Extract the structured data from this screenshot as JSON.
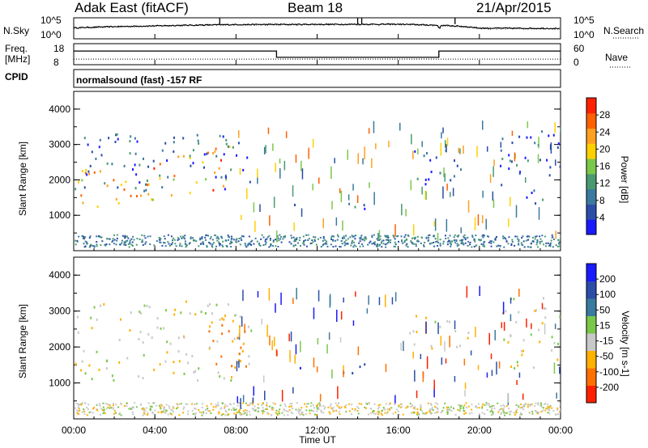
{
  "header": {
    "radar": "Adak East (fitACF)",
    "beam": "Beam 18",
    "date": "21/Apr/2015"
  },
  "chart_data": [
    {
      "type": "line",
      "panel": "noise",
      "left_label": "N.Sky",
      "right_label": "N.Search",
      "left_ticks": [
        "10^5",
        "10^0"
      ],
      "right_ticks": [
        "10^5",
        "10^0"
      ],
      "yscale": "log",
      "ylim": [
        1,
        100000
      ],
      "x": [
        "00:00",
        "04:00",
        "08:00",
        "12:00",
        "16:00",
        "20:00",
        "24:00"
      ],
      "series": [
        {
          "name": "N.Sky",
          "values": [
            400,
            1200,
            2500,
            2800,
            3000,
            350,
            300
          ]
        },
        {
          "name": "N.Search",
          "values": [
            300,
            1000,
            2000,
            2300,
            2500,
            250,
            220
          ]
        }
      ]
    },
    {
      "type": "line",
      "panel": "frequency",
      "left_label": "Freq. [MHz]",
      "right_label": "Nave",
      "bottom_label": "CPID",
      "left_ticks": [
        18,
        8
      ],
      "right_ticks": [
        60,
        0
      ],
      "ylim": [
        8,
        18
      ],
      "x": [
        "00:00",
        "10:00",
        "10:00",
        "18:00",
        "18:00",
        "24:00"
      ],
      "series": [
        {
          "name": "Freq.",
          "values": [
            14.5,
            14.5,
            11.5,
            11.5,
            14.5,
            14.5
          ]
        },
        {
          "name": "Nave",
          "values": [
            16,
            16,
            16,
            16,
            16,
            16
          ]
        }
      ],
      "annotation": "normalsound (fast) -157 RF"
    },
    {
      "type": "heatmap",
      "panel": "power",
      "ylabel": "Slant Range [km]",
      "yticks": [
        1000,
        2000,
        3000,
        4000
      ],
      "ylim": [
        0,
        4500
      ],
      "colorbar_label": "Power [dB]",
      "colorbar_ticks": [
        4,
        8,
        12,
        16,
        20,
        24,
        28
      ],
      "colorbar_range": [
        0,
        32
      ],
      "colors": [
        "#1a1aff",
        "#2a4ea8",
        "#3a7a9e",
        "#4a9a70",
        "#7ac84a",
        "#ffd000",
        "#ffa020",
        "#ff6000",
        "#ff2000"
      ],
      "scatter_regions": [
        {
          "t": [
            0.2,
            7.7
          ],
          "r": [
            1100,
            2300
          ],
          "value": 22
        },
        {
          "t": [
            0.0,
            8.8
          ],
          "r": [
            1700,
            3300
          ],
          "value": 7
        },
        {
          "t": [
            1.0,
            2.2
          ],
          "r": [
            3300,
            3600
          ],
          "value": 12
        },
        {
          "t": [
            10.0,
            11.2
          ],
          "r": [
            1250,
            1450
          ],
          "value": 6
        },
        {
          "t": [
            13.0,
            14.5
          ],
          "r": [
            1150,
            1600
          ],
          "value": 6
        },
        {
          "t": [
            16.5,
            19.5
          ],
          "r": [
            1900,
            2900
          ],
          "value": 5
        },
        {
          "t": [
            21.0,
            24.0
          ],
          "r": [
            1300,
            3400
          ],
          "value": 5
        }
      ]
    },
    {
      "type": "heatmap",
      "panel": "velocity",
      "xlabel": "Time UT",
      "ylabel": "Slant Range [km]",
      "xticks": [
        "00:00",
        "04:00",
        "08:00",
        "12:00",
        "16:00",
        "20:00",
        "00:00"
      ],
      "yticks": [
        1000,
        2000,
        3000,
        4000
      ],
      "ylim": [
        0,
        4500
      ],
      "colorbar_label": "Velocity [m s-1]",
      "colorbar_ticks": [
        200,
        100,
        50,
        15,
        -15,
        -50,
        -100,
        -200
      ],
      "colors": [
        "#1a1aff",
        "#2a4ea8",
        "#3a7a9e",
        "#7ac84a",
        "#c8c8c8",
        "#ffb000",
        "#ff7000",
        "#ff2000"
      ],
      "scatter_regions": [
        {
          "t": [
            0.0,
            8.8
          ],
          "r": [
            1100,
            3300
          ],
          "value": 0
        },
        {
          "t": [
            6.5,
            8.5
          ],
          "r": [
            1400,
            3000
          ],
          "value": -60
        },
        {
          "t": [
            10.0,
            11.2
          ],
          "r": [
            1250,
            1450
          ],
          "value": 180
        },
        {
          "t": [
            13.0,
            14.5
          ],
          "r": [
            1150,
            1600
          ],
          "value": 120
        },
        {
          "t": [
            16.5,
            19.5
          ],
          "r": [
            1900,
            2900
          ],
          "value": 0
        },
        {
          "t": [
            21.0,
            24.0
          ],
          "r": [
            1300,
            3400
          ],
          "value": 0
        }
      ]
    }
  ]
}
